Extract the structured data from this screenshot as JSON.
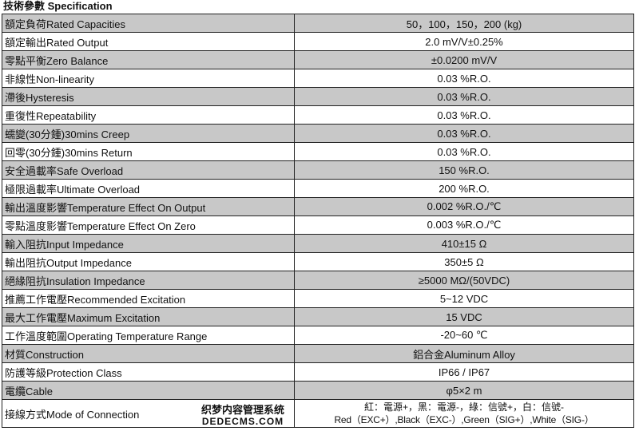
{
  "title": "技術參數 Specification",
  "rows": [
    {
      "label": "額定負荷Rated Capacities",
      "value": "50，100，150，200 (kg)"
    },
    {
      "label": "額定輸出Rated Output",
      "value": "2.0 mV/V±0.25%"
    },
    {
      "label": "零點平衡Zero Balance",
      "value": "±0.0200 mV/V"
    },
    {
      "label": "非線性Non-linearity",
      "value": "0.03 %R.O."
    },
    {
      "label": "滯後Hysteresis",
      "value": "0.03 %R.O."
    },
    {
      "label": "重復性Repeatability",
      "value": "0.03 %R.O."
    },
    {
      "label": "蠕變(30分鍾)30mins Creep",
      "value": "0.03 %R.O."
    },
    {
      "label": "回零(30分鍾)30mins Return",
      "value": "0.03 %R.O."
    },
    {
      "label": "安全過載率Safe Overload",
      "value": "150 %R.O."
    },
    {
      "label": "極限過載率Ultimate Overload",
      "value": "200 %R.O."
    },
    {
      "label": "輸出溫度影響Temperature Effect On Output",
      "value": "0.002 %R.O./℃"
    },
    {
      "label": "零點溫度影響Temperature Effect On Zero",
      "value": "0.003 %R.O./℃"
    },
    {
      "label": "輸入阻抗Input Impedance",
      "value": "410±15 Ω"
    },
    {
      "label": "輸出阻抗Output Impedance",
      "value": "350±5 Ω"
    },
    {
      "label": "絕緣阻抗Insulation Impedance",
      "value": "≥5000 MΩ/(50VDC)"
    },
    {
      "label": "推薦工作電壓Recommended Excitation",
      "value": "5~12 VDC"
    },
    {
      "label": "最大工作電壓Maximum Excitation",
      "value": "15 VDC"
    },
    {
      "label": "工作溫度範圍Operating Temperature Range",
      "value": "-20~60 ℃"
    },
    {
      "label": "材質Construction",
      "value": "鋁合金Aluminum Alloy"
    },
    {
      "label": "防護等級Protection Class",
      "value": "IP66 / IP67"
    },
    {
      "label": "電纜Cable",
      "value": "φ5×2 m"
    }
  ],
  "connection": {
    "label": "接線方式Mode of Connection",
    "line1": "紅：電源+，黑：電源-，綠：信號+，白：信號-",
    "line2": "Red（EXC+）,Black（EXC-）,Green（SIG+）,White（SIG-）"
  },
  "watermark": {
    "line1": "织梦内容管理系统",
    "line2": "DEDECMS.COM"
  }
}
